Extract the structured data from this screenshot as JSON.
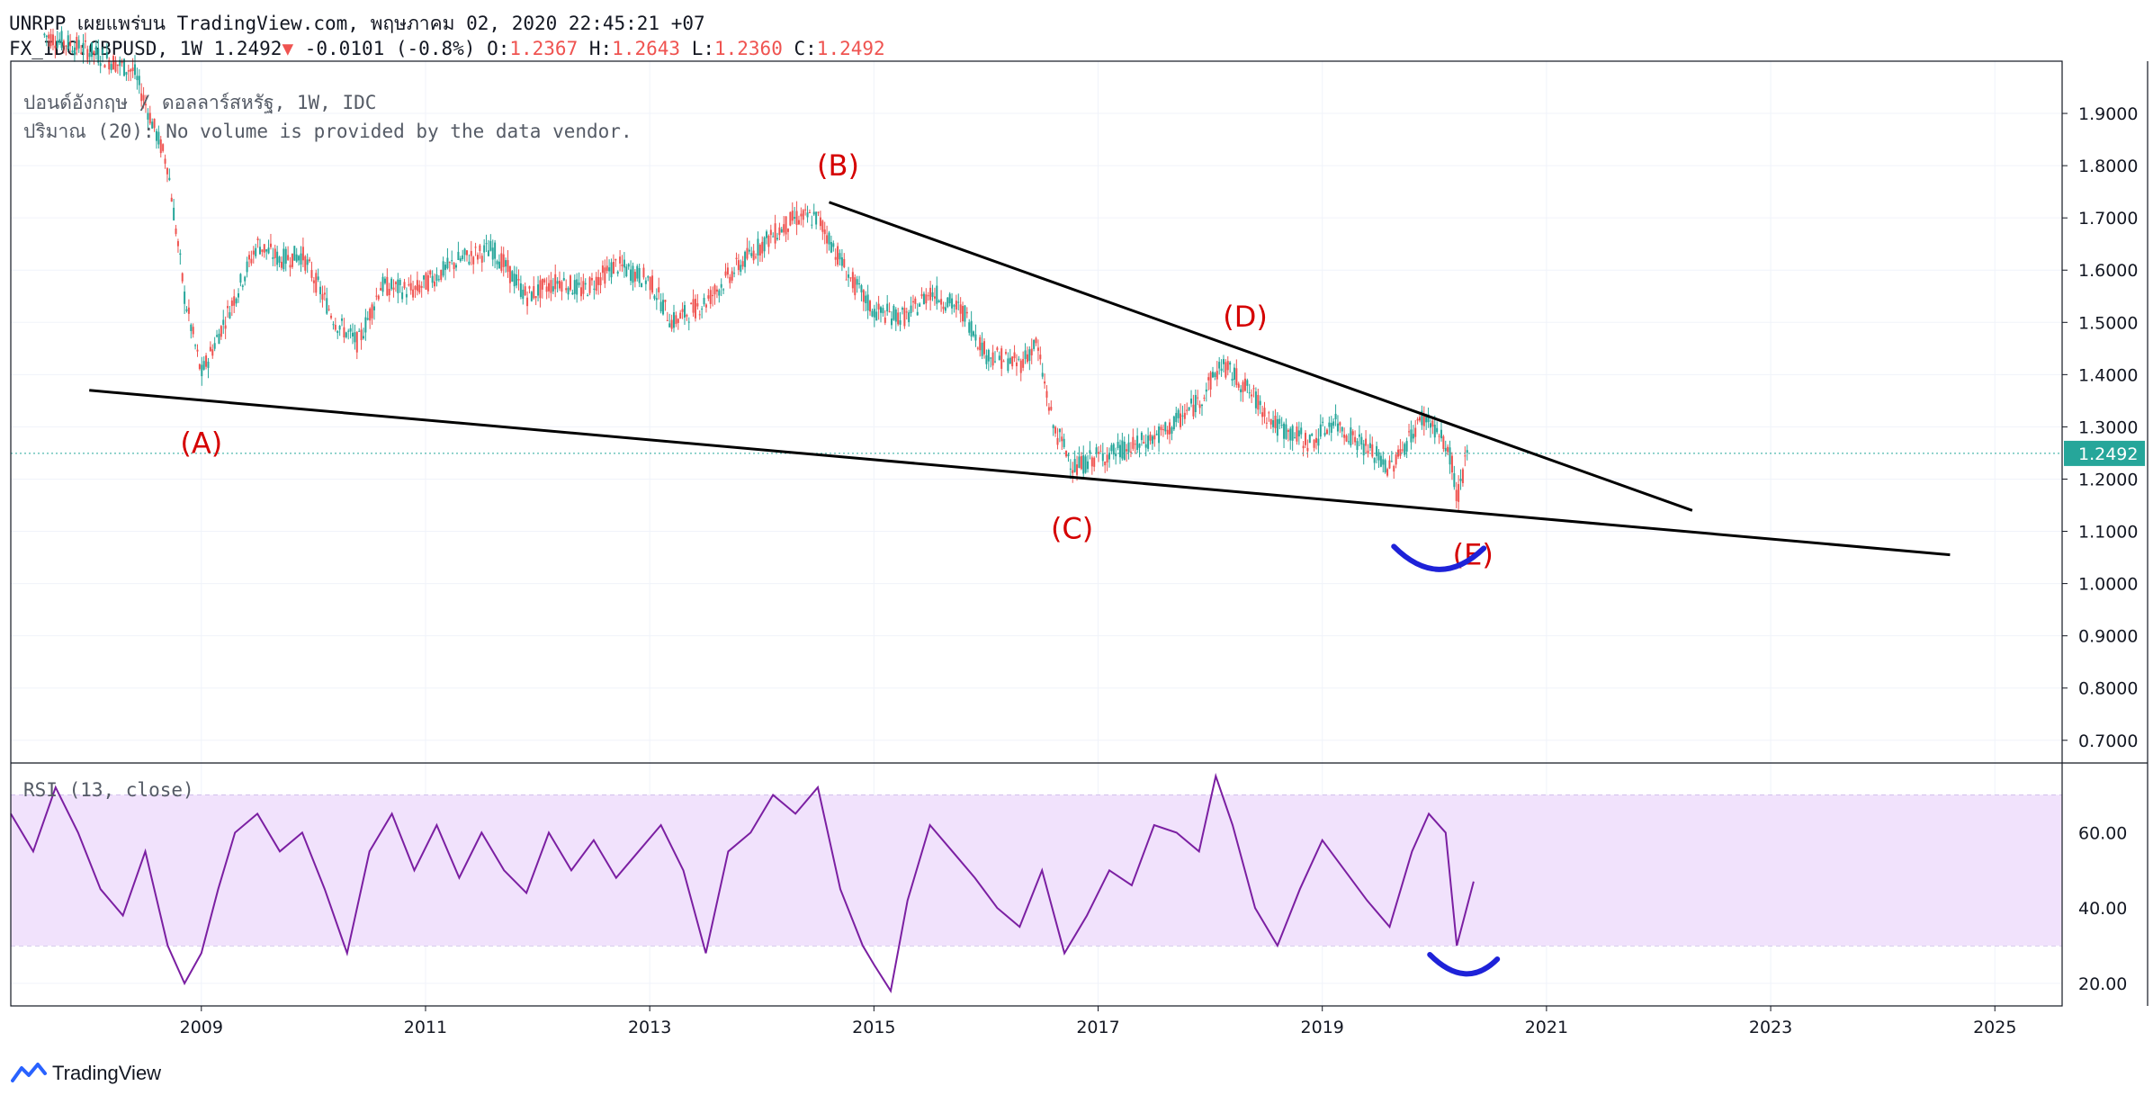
{
  "header": {
    "line1": "UNRPP เผยแพร่บน TradingView.com, พฤษภาคม 02, 2020 22:45:21 +07",
    "symbol": "FX_IDC:GBPUSD, 1W 1.2492",
    "arrow": "▼",
    "change": "-0.0101 (-0.8%)",
    "o_label": "O:",
    "o_value": "1.2367",
    "h_label": "H:",
    "h_value": "1.2643",
    "l_label": "L:",
    "l_value": "1.2360",
    "c_label": "C:",
    "c_value": "1.2492"
  },
  "overlay": {
    "title": "ปอนด์อังกฤษ / ดอลลาร์สหรัฐ, 1W, IDC",
    "volume": "ปริมาณ (20): No volume is provided by the data vendor.",
    "rsi": "RSI (13, close)"
  },
  "brand": "TradingView",
  "colors": {
    "up": "#26a69a",
    "down": "#ef5350",
    "rsi_line": "#7b1fa2",
    "rsi_band": "#f1e2fc",
    "price_label_bg": "#26a69a",
    "annotation": "#d50000",
    "arc": "#1e22d8",
    "trendline": "#000000",
    "last_price_line": "#26a69a"
  },
  "chart_data": [
    {
      "type": "candlestick",
      "timeframe": "1W",
      "symbol": "GBPUSD",
      "last_price": "1.2492",
      "ylim": [
        0.66,
        2.0
      ],
      "x_ticks": [
        "2009",
        "2011",
        "2013",
        "2015",
        "2017",
        "2019",
        "2021",
        "2023",
        "2025"
      ],
      "y_ticks": [
        "1.9000",
        "1.8000",
        "1.7000",
        "1.6000",
        "1.5000",
        "1.4000",
        "1.3000",
        "1.2000",
        "1.1000",
        "1.0000",
        "0.9000",
        "0.8000",
        "0.7000"
      ],
      "series": [
        {
          "x": [
            2007.6,
            2008.0,
            2008.4,
            2008.7,
            2008.85,
            2009.0,
            2009.2,
            2009.5,
            2009.7,
            2009.9,
            2010.2,
            2010.4,
            2010.6,
            2010.9,
            2011.3,
            2011.6,
            2011.9,
            2012.2,
            2012.4,
            2012.7,
            2013.0,
            2013.2,
            2013.5,
            2013.8,
            2014.0,
            2014.3,
            2014.5,
            2014.8,
            2015.0,
            2015.3,
            2015.5,
            2015.8,
            2016.0,
            2016.3,
            2016.45,
            2016.6,
            2016.8,
            2016.95,
            2017.3,
            2017.6,
            2017.9,
            2018.1,
            2018.3,
            2018.6,
            2018.9,
            2019.1,
            2019.4,
            2019.6,
            2019.9,
            2020.0,
            2020.15,
            2020.2,
            2020.3
          ],
          "y": [
            2.05,
            2.02,
            1.98,
            1.8,
            1.55,
            1.4,
            1.5,
            1.65,
            1.62,
            1.63,
            1.5,
            1.46,
            1.57,
            1.56,
            1.62,
            1.64,
            1.55,
            1.58,
            1.56,
            1.61,
            1.58,
            1.5,
            1.54,
            1.61,
            1.65,
            1.7,
            1.7,
            1.58,
            1.52,
            1.51,
            1.56,
            1.52,
            1.44,
            1.42,
            1.46,
            1.3,
            1.22,
            1.24,
            1.26,
            1.29,
            1.35,
            1.42,
            1.38,
            1.3,
            1.27,
            1.31,
            1.26,
            1.22,
            1.32,
            1.3,
            1.24,
            1.16,
            1.25
          ]
        }
      ],
      "annotations": [
        {
          "label": "(A)",
          "x": 2009.0,
          "y": 1.35
        },
        {
          "label": "(B)",
          "x": 2014.6,
          "y": 1.73
        },
        {
          "label": "(C)",
          "x": 2016.8,
          "y": 1.19
        },
        {
          "label": "(D)",
          "x": 2018.2,
          "y": 1.44
        },
        {
          "label": "(E)",
          "x": 2020.2,
          "y": 1.14
        }
      ],
      "trendlines": [
        {
          "from": [
            2008.0,
            1.37
          ],
          "to": [
            2024.6,
            1.055
          ]
        },
        {
          "from": [
            2014.6,
            1.73
          ],
          "to": [
            2022.3,
            1.14
          ]
        }
      ]
    },
    {
      "type": "line",
      "name": "RSI (13, close)",
      "ylim": [
        14,
        78
      ],
      "y_ticks": [
        "60.00",
        "40.00",
        "20.00"
      ],
      "bands": [
        70,
        30
      ],
      "x": [
        2007.3,
        2007.5,
        2007.7,
        2007.9,
        2008.1,
        2008.3,
        2008.5,
        2008.7,
        2008.85,
        2009.0,
        2009.15,
        2009.3,
        2009.5,
        2009.7,
        2009.9,
        2010.1,
        2010.3,
        2010.5,
        2010.7,
        2010.9,
        2011.1,
        2011.3,
        2011.5,
        2011.7,
        2011.9,
        2012.1,
        2012.3,
        2012.5,
        2012.7,
        2012.9,
        2013.1,
        2013.3,
        2013.5,
        2013.7,
        2013.9,
        2014.1,
        2014.3,
        2014.5,
        2014.7,
        2014.9,
        2015.0,
        2015.15,
        2015.3,
        2015.5,
        2015.7,
        2015.9,
        2016.1,
        2016.3,
        2016.5,
        2016.7,
        2016.9,
        2017.1,
        2017.3,
        2017.5,
        2017.7,
        2017.9,
        2018.05,
        2018.2,
        2018.4,
        2018.6,
        2018.8,
        2019.0,
        2019.2,
        2019.4,
        2019.6,
        2019.8,
        2019.95,
        2020.1,
        2020.2,
        2020.35
      ],
      "y": [
        65,
        55,
        72,
        60,
        45,
        38,
        55,
        30,
        20,
        28,
        45,
        60,
        65,
        55,
        60,
        45,
        28,
        55,
        65,
        50,
        62,
        48,
        60,
        50,
        44,
        60,
        50,
        58,
        48,
        55,
        62,
        50,
        28,
        55,
        60,
        70,
        65,
        72,
        45,
        30,
        25,
        18,
        42,
        62,
        55,
        48,
        40,
        35,
        50,
        28,
        38,
        50,
        46,
        62,
        60,
        55,
        75,
        62,
        40,
        30,
        45,
        58,
        50,
        42,
        35,
        55,
        65,
        60,
        30,
        47
      ]
    }
  ]
}
